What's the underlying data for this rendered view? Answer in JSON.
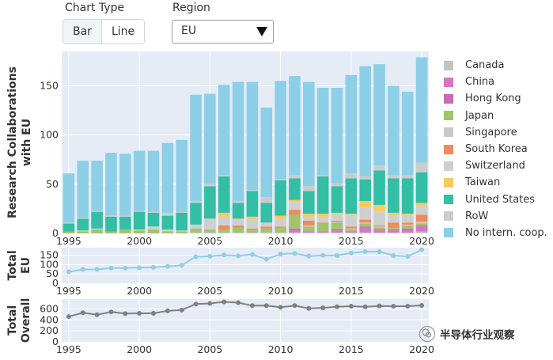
{
  "controls": {
    "chart_type_label": "Chart Type",
    "chart_type_options": [
      "Bar",
      "Line"
    ],
    "chart_type_selected": "Bar",
    "region_label": "Region",
    "region_value": "EU"
  },
  "colors": {
    "Canada": "#c3c3c3",
    "China": "#d874c5",
    "Hong Kong": "#c96ab8",
    "Japan": "#a3c46b",
    "Singapore": "#c8c8c8",
    "South Korea": "#ef8a5d",
    "Switzerland": "#cfcfcf",
    "Taiwan": "#f9cb5c",
    "United States": "#33bfa5",
    "RoW": "#cccccc",
    "No intern. coop.": "#8ecfe8",
    "total_eu_line": "#8ecfe8",
    "total_overall_line": "#808080"
  },
  "chart_data": [
    {
      "type": "bar",
      "stacked": true,
      "ylabel": "Research Collaborations with EU",
      "x": [
        1995,
        1996,
        1997,
        1998,
        1999,
        2000,
        2001,
        2002,
        2003,
        2004,
        2005,
        2006,
        2007,
        2008,
        2009,
        2010,
        2011,
        2012,
        2013,
        2014,
        2015,
        2016,
        2017,
        2018,
        2019,
        2020
      ],
      "xticks": [
        1995,
        2000,
        2005,
        2010,
        2015,
        2020
      ],
      "ylim": [
        0,
        185
      ],
      "yticks": [
        0,
        50,
        100,
        150
      ],
      "legend": [
        "Canada",
        "China",
        "Hong Kong",
        "Japan",
        "Singapore",
        "South Korea",
        "Switzerland",
        "Taiwan",
        "United States",
        "RoW",
        "No intern. coop."
      ],
      "series": [
        {
          "name": "Canada",
          "values": [
            0,
            0,
            0,
            0,
            0,
            0,
            0,
            0,
            0,
            1,
            1,
            1,
            1,
            1,
            1,
            1,
            1,
            1,
            1,
            1,
            1,
            1,
            1,
            1,
            1,
            2
          ]
        },
        {
          "name": "China",
          "values": [
            0,
            0,
            0,
            0,
            0,
            0,
            0,
            0,
            0,
            0,
            0,
            0,
            0,
            0,
            0,
            0,
            3,
            1,
            1,
            2,
            1,
            5,
            2,
            2,
            3,
            5
          ]
        },
        {
          "name": "Hong Kong",
          "values": [
            0,
            0,
            0,
            0,
            0,
            0,
            0,
            0,
            0,
            0,
            0,
            0,
            0,
            0,
            0,
            0,
            1,
            0,
            0,
            1,
            0,
            1,
            1,
            1,
            1,
            1
          ]
        },
        {
          "name": "Japan",
          "values": [
            2,
            2,
            4,
            2,
            4,
            3,
            4,
            2,
            2,
            4,
            3,
            3,
            5,
            3,
            4,
            5,
            14,
            5,
            8,
            7,
            2,
            3,
            2,
            2,
            3,
            2
          ]
        },
        {
          "name": "Singapore",
          "values": [
            0,
            0,
            0,
            0,
            0,
            0,
            0,
            0,
            0,
            0,
            0,
            0,
            0,
            0,
            0,
            0,
            0,
            1,
            0,
            1,
            1,
            1,
            1,
            0,
            1,
            2
          ]
        },
        {
          "name": "South Korea",
          "values": [
            0,
            0,
            0,
            0,
            0,
            0,
            0,
            0,
            0,
            0,
            0,
            4,
            2,
            1,
            2,
            1,
            5,
            5,
            1,
            1,
            2,
            3,
            1,
            5,
            2,
            7
          ]
        },
        {
          "name": "Switzerland",
          "values": [
            0,
            1,
            1,
            0,
            0,
            1,
            3,
            2,
            1,
            4,
            11,
            9,
            6,
            9,
            4,
            8,
            8,
            4,
            6,
            6,
            12,
            12,
            14,
            7,
            7,
            9
          ]
        },
        {
          "name": "Taiwan",
          "values": [
            0,
            0,
            0,
            0,
            0,
            0,
            0,
            0,
            0,
            0,
            0,
            4,
            1,
            3,
            0,
            3,
            2,
            3,
            3,
            2,
            1,
            7,
            7,
            3,
            2,
            3
          ]
        },
        {
          "name": "United States",
          "values": [
            8,
            12,
            17,
            15,
            13,
            18,
            14,
            14,
            18,
            22,
            33,
            37,
            16,
            26,
            20,
            36,
            22,
            23,
            38,
            27,
            36,
            22,
            35,
            35,
            36,
            31
          ]
        },
        {
          "name": "RoW",
          "values": [
            1,
            1,
            1,
            1,
            1,
            1,
            1,
            3,
            1,
            2,
            2,
            1,
            2,
            1,
            6,
            1,
            3,
            5,
            1,
            3,
            5,
            3,
            5,
            3,
            3,
            10
          ]
        },
        {
          "name": "No intern. coop.",
          "values": [
            50,
            58,
            51,
            64,
            63,
            61,
            62,
            71,
            73,
            108,
            92,
            92,
            121,
            110,
            91,
            100,
            101,
            106,
            89,
            97,
            100,
            112,
            103,
            91,
            85,
            107
          ]
        }
      ]
    },
    {
      "type": "line",
      "ylabel": "Total EU",
      "x": [
        1995,
        1996,
        1997,
        1998,
        1999,
        2000,
        2001,
        2002,
        2003,
        2004,
        2005,
        2006,
        2007,
        2008,
        2009,
        2010,
        2011,
        2012,
        2013,
        2014,
        2015,
        2016,
        2017,
        2018,
        2019,
        2020
      ],
      "xticks": [
        1995,
        2000,
        2005,
        2010,
        2015,
        2020
      ],
      "values": [
        61,
        74,
        74,
        81,
        81,
        83,
        85,
        90,
        96,
        142,
        144,
        151,
        146,
        154,
        128,
        156,
        159,
        145,
        149,
        148,
        161,
        169,
        169,
        148,
        143,
        179
      ],
      "ylim": [
        0,
        190
      ],
      "yticks": [
        0,
        50,
        100,
        150
      ]
    },
    {
      "type": "line",
      "ylabel": "Total Overall",
      "x": [
        1995,
        1996,
        1997,
        1998,
        1999,
        2000,
        2001,
        2002,
        2003,
        2004,
        2005,
        2006,
        2007,
        2008,
        2009,
        2010,
        2011,
        2012,
        2013,
        2014,
        2015,
        2016,
        2017,
        2018,
        2019,
        2020
      ],
      "xticks": [
        1995,
        2000,
        2005,
        2010,
        2015,
        2020
      ],
      "values": [
        460,
        530,
        495,
        545,
        515,
        520,
        520,
        565,
        580,
        690,
        700,
        730,
        715,
        660,
        660,
        630,
        660,
        610,
        620,
        640,
        650,
        640,
        655,
        650,
        650,
        665
      ],
      "ylim": [
        0,
        780
      ],
      "yticks": [
        0,
        200,
        400,
        600
      ]
    }
  ],
  "watermark": {
    "text": "半导体行业观察"
  }
}
